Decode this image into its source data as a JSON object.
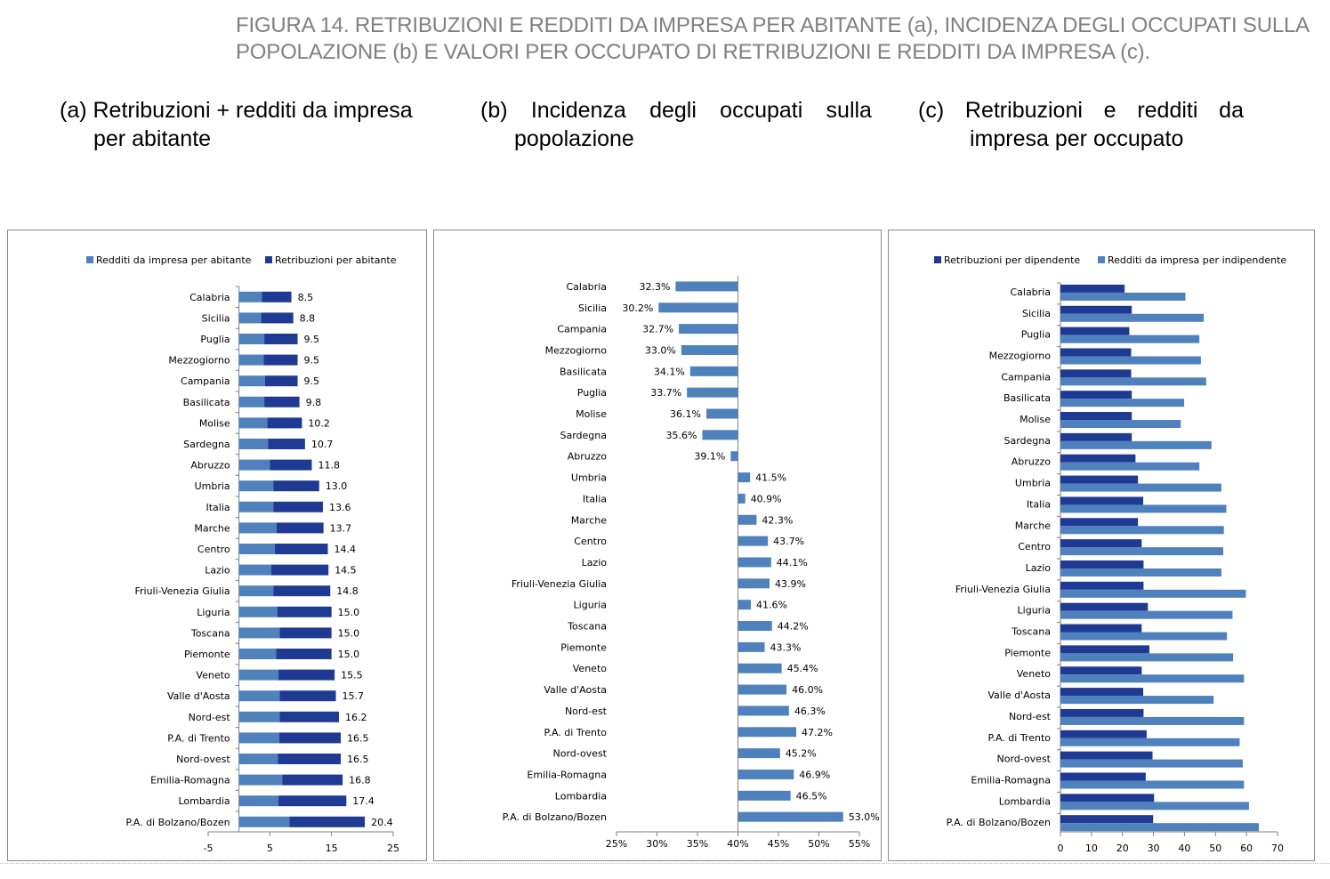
{
  "figure_title_line1": "FIGURA 14. RETRIBUZIONI E REDDITI DA IMPRESA PER ABITANTE (a), INCIDENZA DEGLI OCCUPATI SULLA",
  "figure_title_line2": "POPOLAZIONE (b)  E VALORI PER OCCUPATO DI RETRIBUZIONI E REDDITI DA IMPRESA (c).",
  "panels": {
    "a": {
      "line1": "(a) Retribuzioni + redditi da impresa",
      "line2": "per abitante"
    },
    "b": {
      "line1_words": [
        "(b)",
        "Incidenza",
        "degli",
        "occupati",
        "sulla"
      ],
      "line2": "popolazione"
    },
    "c": {
      "line1_words": [
        "(c)",
        "Retribuzioni",
        "e",
        "redditi",
        "da"
      ],
      "line2": "impresa per occupato"
    }
  },
  "colors": {
    "light": "#4f81bd",
    "dark": "#1f3a93",
    "axis": "#808080"
  },
  "chart_data": [
    {
      "id": "a",
      "type": "bar",
      "orientation": "horizontal",
      "stacked": true,
      "legend": "top",
      "legend_entries": [
        "Redditi da impresa per abitante",
        "Retribuzioni per abitante"
      ],
      "xlim": [
        -5,
        25
      ],
      "xticks": [
        "-5",
        "5",
        "15",
        "25"
      ],
      "xtick_values": [
        -5,
        5,
        15,
        25
      ],
      "categories": [
        "Calabria",
        "Sicilia",
        "Puglia",
        "Mezzogiorno",
        "Campania",
        "Basilicata",
        "Molise",
        "Sardegna",
        "Abruzzo",
        "Umbria",
        "Italia",
        "Marche",
        "Centro",
        "Lazio",
        "Friuli-Venezia Giulia",
        "Liguria",
        "Toscana",
        "Piemonte",
        "Veneto",
        "Valle d'Aosta",
        "Nord-est",
        "P.A. di Trento",
        "Nord-ovest",
        "Emilia-Romagna",
        "Lombardia",
        "P.A. di Bolzano/Bozen"
      ],
      "series": [
        {
          "name": "Redditi da impresa per abitante",
          "color": "#4f81bd",
          "values": [
            3.7,
            3.6,
            4.1,
            4.0,
            4.2,
            4.1,
            4.6,
            4.7,
            5.0,
            5.6,
            5.6,
            6.1,
            5.8,
            5.2,
            5.6,
            6.2,
            6.6,
            6.0,
            6.4,
            6.6,
            6.6,
            6.5,
            6.3,
            7.0,
            6.4,
            8.2
          ]
        },
        {
          "name": "Retribuzioni per abitante",
          "color": "#1f3a93",
          "values": [
            4.8,
            5.2,
            5.4,
            5.5,
            5.3,
            5.7,
            5.6,
            6.0,
            6.8,
            7.4,
            8.0,
            7.6,
            8.6,
            9.3,
            9.2,
            8.8,
            8.4,
            9.0,
            9.1,
            9.1,
            9.6,
            10.0,
            10.2,
            9.8,
            11.0,
            12.2
          ]
        }
      ],
      "labels": [
        "8.5",
        "8.8",
        "9.5",
        "9.5",
        "9.5",
        "9.8",
        "10.2",
        "10.7",
        "11.8",
        "13.0",
        "13.6",
        "13.7",
        "14.4",
        "14.5",
        "14.8",
        "15.0",
        "15.0",
        "15.0",
        "15.5",
        "15.7",
        "16.2",
        "16.5",
        "16.5",
        "16.8",
        "17.4",
        "20.4"
      ]
    },
    {
      "id": "b",
      "type": "bar",
      "orientation": "horizontal",
      "baseline": 40,
      "xlim": [
        25,
        55
      ],
      "xticks": [
        "25%",
        "30%",
        "35%",
        "40%",
        "45%",
        "50%",
        "55%"
      ],
      "xtick_values": [
        25,
        30,
        35,
        40,
        45,
        50,
        55
      ],
      "categories": [
        "Calabria",
        "Sicilia",
        "Campania",
        "Mezzogiorno",
        "Basilicata",
        "Puglia",
        "Molise",
        "Sardegna",
        "Abruzzo",
        "Umbria",
        "Italia",
        "Marche",
        "Centro",
        "Lazio",
        "Friuli-Venezia Giulia",
        "Liguria",
        "Toscana",
        "Piemonte",
        "Veneto",
        "Valle d'Aosta",
        "Nord-est",
        "P.A. di Trento",
        "Nord-ovest",
        "Emilia-Romagna",
        "Lombardia",
        "P.A. di Bolzano/Bozen"
      ],
      "series": [
        {
          "color": "#4f81bd",
          "values": [
            32.3,
            30.2,
            32.7,
            33.0,
            34.1,
            33.7,
            36.1,
            35.6,
            39.1,
            41.5,
            40.9,
            42.3,
            43.7,
            44.1,
            43.9,
            41.6,
            44.2,
            43.3,
            45.4,
            46.0,
            46.3,
            47.2,
            45.2,
            46.9,
            46.5,
            53.0
          ]
        }
      ],
      "labels": [
        "32.3%",
        "30.2%",
        "32.7%",
        "33.0%",
        "34.1%",
        "33.7%",
        "36.1%",
        "35.6%",
        "39.1%",
        "41.5%",
        "40.9%",
        "42.3%",
        "43.7%",
        "44.1%",
        "43.9%",
        "41.6%",
        "44.2%",
        "43.3%",
        "45.4%",
        "46.0%",
        "46.3%",
        "47.2%",
        "45.2%",
        "46.9%",
        "46.5%",
        "53.0%"
      ]
    },
    {
      "id": "c",
      "type": "bar",
      "orientation": "horizontal",
      "grouped": true,
      "legend": "top",
      "legend_entries": [
        "Retribuzioni per dipendente",
        "Redditi da impresa per indipendente"
      ],
      "xlim": [
        0,
        70
      ],
      "xticks": [
        "0",
        "10",
        "20",
        "30",
        "40",
        "50",
        "60",
        "70"
      ],
      "xtick_values": [
        0,
        10,
        20,
        30,
        40,
        50,
        60,
        70
      ],
      "categories": [
        "Calabria",
        "Sicilia",
        "Puglia",
        "Mezzogiorno",
        "Campania",
        "Basilicata",
        "Molise",
        "Sardegna",
        "Abruzzo",
        "Umbria",
        "Italia",
        "Marche",
        "Centro",
        "Lazio",
        "Friuli-Venezia Giulia",
        "Liguria",
        "Toscana",
        "Piemonte",
        "Veneto",
        "Valle d'Aosta",
        "Nord-est",
        "P.A. di Trento",
        "Nord-ovest",
        "Emilia-Romagna",
        "Lombardia",
        "P.A. di Bolzano/Bozen"
      ],
      "series": [
        {
          "name": "Retribuzioni per dipendente",
          "color": "#1f3a93",
          "values": [
            20.7,
            23.0,
            22.2,
            22.8,
            22.8,
            23.0,
            23.0,
            23.0,
            24.2,
            25.0,
            26.7,
            25.0,
            26.2,
            26.8,
            26.8,
            28.2,
            26.2,
            28.7,
            26.2,
            26.7,
            26.8,
            27.8,
            29.7,
            27.5,
            30.2,
            29.9
          ]
        },
        {
          "name": "Redditi da impresa per indipendente",
          "color": "#4f81bd",
          "values": [
            40.3,
            46.2,
            44.8,
            45.3,
            47.0,
            39.9,
            38.8,
            48.7,
            44.8,
            51.9,
            53.5,
            52.7,
            52.5,
            51.9,
            59.8,
            55.5,
            53.7,
            55.7,
            59.2,
            49.4,
            59.2,
            57.8,
            58.8,
            59.2,
            60.8,
            64.0
          ]
        }
      ]
    }
  ]
}
